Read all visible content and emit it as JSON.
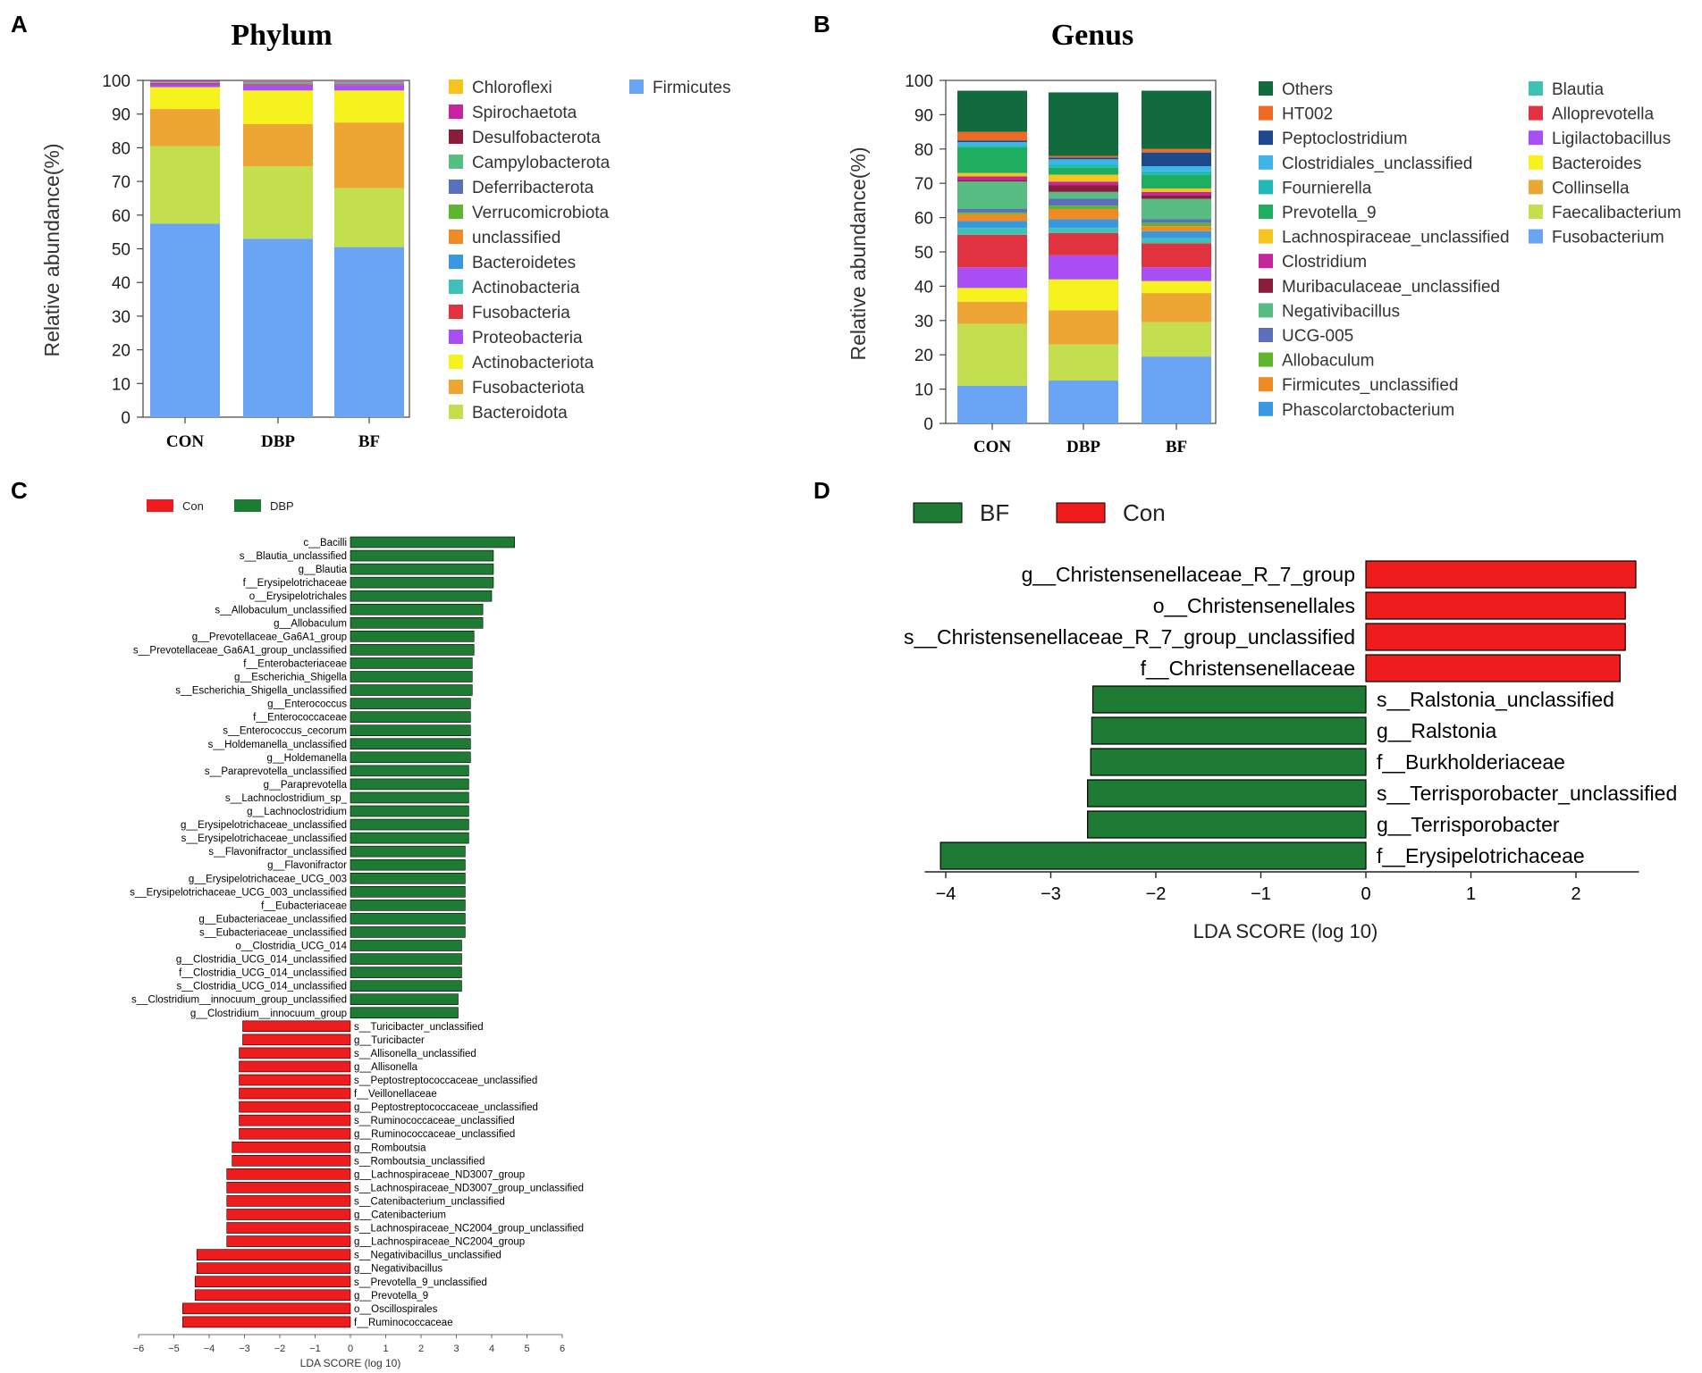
{
  "panels": [
    {
      "letter": "A",
      "title": "Phylum",
      "ylabel": "Relative abundance(%)",
      "categories": [
        "CON",
        "DBP",
        "BF"
      ],
      "yticks": [
        "0",
        "10",
        "20",
        "30",
        "40",
        "50",
        "60",
        "70",
        "80",
        "90",
        "100"
      ],
      "legend": [
        "Chloroflexi",
        "Spirochaetota",
        "Desulfobacterota",
        "Campylobacterota",
        "Deferribacterota",
        "Verrucomicrobiota",
        "unclassified",
        "Bacteroidetes",
        "Actinobacteria",
        "Fusobacteria",
        "Proteobacteria",
        "Actinobacteriota",
        "Fusobacteriota",
        "Bacteroidota",
        "Firmicutes"
      ]
    },
    {
      "letter": "B",
      "title": "Genus",
      "ylabel": "Relative abundance(%)",
      "categories": [
        "CON",
        "DBP",
        "BF"
      ],
      "yticks": [
        "0",
        "10",
        "20",
        "30",
        "40",
        "50",
        "60",
        "70",
        "80",
        "90",
        "100"
      ],
      "legend": [
        "Others",
        "HT002",
        "Peptoclostridium",
        "Clostridiales_unclassified",
        "Fournierella",
        "Prevotella_9",
        "Lachnospiraceae_unclassified",
        "Clostridium",
        "Muribaculaceae_unclassified",
        "Negativibacillus",
        "UCG-005",
        "Allobaculum",
        "Firmicutes_unclassified",
        "Phascolarctobacterium",
        "Blautia",
        "Alloprevotella",
        "Ligilactobacillus",
        "Bacteroides",
        "Collinsella",
        "Faecalibacterium",
        "Fusobacterium"
      ]
    },
    {
      "letter": "C",
      "legend": [
        "Con",
        "DBP"
      ],
      "xlabel": "LDA SCORE (log 10)",
      "xticks": [
        "−6",
        "−5",
        "−4",
        "−3",
        "−2",
        "−1",
        "0",
        "1",
        "2",
        "3",
        "4",
        "5",
        "6"
      ]
    },
    {
      "letter": "D",
      "legend": [
        "BF",
        "Con"
      ],
      "xlabel": "LDA SCORE (log 10)",
      "xticks": [
        "−4",
        "−3",
        "−2",
        "−1",
        "0",
        "1",
        "2"
      ]
    }
  ],
  "chart_data": [
    {
      "type": "bar",
      "stacked": true,
      "title": "Phylum",
      "ylabel": "Relative abundance(%)",
      "ylim": [
        0,
        100
      ],
      "categories": [
        "CON",
        "DBP",
        "BF"
      ],
      "colors": {
        "Firmicutes": "#6aa5f5",
        "Bacteroidota": "#c4df4e",
        "Fusobacteriota": "#eda633",
        "Actinobacteriota": "#f6f21e",
        "Proteobacteria": "#a94df5",
        "Fusobacteria": "#e0323f",
        "Actinobacteria": "#3fc2b5",
        "Bacteroidetes": "#3a98e0",
        "unclassified": "#f08a24",
        "Verrucomicrobiota": "#5fb62e",
        "Deferribacterota": "#5b6fbd",
        "Campylobacterota": "#58bd82",
        "Desulfobacterota": "#8a1c3c",
        "Spirochaetota": "#c6259b",
        "Chloroflexi": "#f5c41d"
      },
      "series": [
        {
          "name": "Firmicutes",
          "values": [
            57.5,
            53,
            50.5
          ]
        },
        {
          "name": "Bacteroidota",
          "values": [
            23,
            21.5,
            17.5
          ]
        },
        {
          "name": "Fusobacteriota",
          "values": [
            11,
            12.5,
            19.5
          ]
        },
        {
          "name": "Actinobacteriota",
          "values": [
            6.5,
            10,
            9.5
          ]
        },
        {
          "name": "Proteobacteria",
          "values": [
            0.8,
            1.5,
            1.6
          ]
        },
        {
          "name": "Fusobacteria",
          "values": [
            0.4,
            0.3,
            0.2
          ]
        },
        {
          "name": "Actinobacteria",
          "values": [
            0.2,
            0.2,
            0.2
          ]
        },
        {
          "name": "Bacteroidetes",
          "values": [
            0.2,
            0.3,
            0.3
          ]
        },
        {
          "name": "unclassified",
          "values": [
            0.1,
            0.2,
            0.2
          ]
        },
        {
          "name": "Spirochaetota",
          "values": [
            0.3,
            0.2,
            0.2
          ]
        }
      ]
    },
    {
      "type": "bar",
      "stacked": true,
      "title": "Genus",
      "ylabel": "Relative abundance(%)",
      "ylim": [
        0,
        100
      ],
      "categories": [
        "CON",
        "DBP",
        "BF"
      ],
      "colors": {
        "Fusobacterium": "#6aa5f5",
        "Faecalibacterium": "#c4df4e",
        "Collinsella": "#eda633",
        "Bacteroides": "#f6f21e",
        "Ligilactobacillus": "#a94df5",
        "Alloprevotella": "#e0323f",
        "Blautia": "#3fc2b5",
        "Phascolarctobacterium": "#3a98e0",
        "Firmicutes_unclassified": "#f08a24",
        "Allobaculum": "#5fb62e",
        "UCG-005": "#5b6fbd",
        "Negativibacillus": "#58bd82",
        "Muribaculaceae_unclassified": "#8a1c3c",
        "Clostridium": "#c6259b",
        "Lachnospiraceae_unclassified": "#f5c41d",
        "Prevotella_9": "#1fae5f",
        "Fournierella": "#1fbab8",
        "Clostridiales_unclassified": "#3fb4e8",
        "Peptoclostridium": "#1d4a8c",
        "HT002": "#ee6a25",
        "Others": "#116b3e"
      },
      "series": [
        {
          "name": "Fusobacterium",
          "values": [
            11,
            12.5,
            19.5
          ]
        },
        {
          "name": "Faecalibacterium",
          "values": [
            18,
            10.5,
            10
          ]
        },
        {
          "name": "Collinsella",
          "values": [
            6.5,
            10,
            8.5
          ]
        },
        {
          "name": "Bacteroides",
          "values": [
            4,
            9,
            3.5
          ]
        },
        {
          "name": "Ligilactobacillus",
          "values": [
            6,
            7,
            4
          ]
        },
        {
          "name": "Alloprevotella",
          "values": [
            9.5,
            6.5,
            7
          ]
        },
        {
          "name": "Blautia",
          "values": [
            2,
            1.5,
            1.5
          ]
        },
        {
          "name": "Phascolarctobacterium",
          "values": [
            2,
            2.5,
            2
          ]
        },
        {
          "name": "Firmicutes_unclassified",
          "values": [
            2,
            3,
            1.5
          ]
        },
        {
          "name": "Allobaculum",
          "values": [
            0.5,
            1,
            1
          ]
        },
        {
          "name": "UCG-005",
          "values": [
            1,
            2,
            1
          ]
        },
        {
          "name": "Negativibacillus",
          "values": [
            8,
            2,
            6
          ]
        },
        {
          "name": "Muribaculaceae_unclassified",
          "values": [
            0.5,
            2,
            1
          ]
        },
        {
          "name": "Clostridium",
          "values": [
            1,
            1,
            1
          ]
        },
        {
          "name": "Lachnospiraceae_unclassified",
          "values": [
            1,
            2,
            1
          ]
        },
        {
          "name": "Prevotella_9",
          "values": [
            7.5,
            2,
            4
          ]
        },
        {
          "name": "Fournierella",
          "values": [
            0.5,
            1,
            1
          ]
        },
        {
          "name": "Clostridiales_unclassified",
          "values": [
            1,
            1.5,
            1.5
          ]
        },
        {
          "name": "Peptoclostridium",
          "values": [
            0.5,
            0.5,
            4
          ]
        },
        {
          "name": "HT002",
          "values": [
            2.5,
            0.5,
            1
          ]
        },
        {
          "name": "Others",
          "values": [
            12,
            18.5,
            17
          ]
        }
      ]
    },
    {
      "type": "bar",
      "orientation": "horizontal",
      "xlabel": "LDA SCORE (log 10)",
      "xlim": [
        -6,
        6
      ],
      "legend": [
        "Con",
        "DBP"
      ],
      "colors": {
        "Con": "#ee1c1c",
        "DBP": "#1e7b34"
      },
      "categories": [
        "c__Bacilli",
        "s__Blautia_unclassified",
        "g__Blautia",
        "f__Erysipelotrichaceae",
        "o__Erysipelotrichales",
        "s__Allobaculum_unclassified",
        "g__Allobaculum",
        "g__Prevotellaceae_Ga6A1_group",
        "s__Prevotellaceae_Ga6A1_group_unclassified",
        "f__Enterobacteriaceae",
        "g__Escherichia_Shigella",
        "s__Escherichia_Shigella_unclassified",
        "g__Enterococcus",
        "f__Enterococcaceae",
        "s__Enterococcus_cecorum",
        "s__Holdemanella_unclassified",
        "g__Holdemanella",
        "s__Paraprevotella_unclassified",
        "g__Paraprevotella",
        "s__Lachnoclostridium_sp_",
        "g__Lachnoclostridium",
        "g__Erysipelotrichaceae_unclassified",
        "s__Erysipelotrichaceae_unclassified",
        "s__Flavonifractor_unclassified",
        "g__Flavonifractor",
        "g__Erysipelotrichaceae_UCG_003",
        "s__Erysipelotrichaceae_UCG_003_unclassified",
        "f__Eubacteriaceae",
        "g__Eubacteriaceae_unclassified",
        "s__Eubacteriaceae_unclassified",
        "o__Clostridia_UCG_014",
        "g__Clostridia_UCG_014_unclassified",
        "f__Clostridia_UCG_014_unclassified",
        "s__Clostridia_UCG_014_unclassified",
        "s__Clostridium__innocuum_group_unclassified",
        "g__Clostridium__innocuum_group",
        "s__Turicibacter_unclassified",
        "g__Turicibacter",
        "s__Allisonella_unclassified",
        "g__Allisonella",
        "s__Peptostreptococcaceae_unclassified",
        "f__Veillonellaceae",
        "g__Peptostreptococcaceae_unclassified",
        "s__Ruminococcaceae_unclassified",
        "g__Ruminococcaceae_unclassified",
        "g__Romboutsia",
        "s__Romboutsia_unclassified",
        "g__Lachnospiraceae_ND3007_group",
        "s__Lachnospiraceae_ND3007_group_unclassified",
        "s__Catenibacterium_unclassified",
        "g__Catenibacterium",
        "s__Lachnospiraceae_NC2004_group_unclassified",
        "g__Lachnospiraceae_NC2004_group",
        "s__Negativibacillus_unclassified",
        "g__Negativibacillus",
        "s__Prevotella_9_unclassified",
        "g__Prevotella_9",
        "o__Oscillospirales",
        "f__Ruminococcaceae"
      ],
      "values": [
        4.65,
        4.05,
        4.05,
        4.05,
        4.0,
        3.75,
        3.75,
        3.5,
        3.5,
        3.45,
        3.45,
        3.45,
        3.4,
        3.4,
        3.4,
        3.4,
        3.4,
        3.35,
        3.35,
        3.35,
        3.35,
        3.35,
        3.35,
        3.25,
        3.25,
        3.25,
        3.25,
        3.25,
        3.25,
        3.25,
        3.15,
        3.15,
        3.15,
        3.15,
        3.05,
        3.05,
        -3.05,
        -3.05,
        -3.15,
        -3.15,
        -3.15,
        -3.15,
        -3.15,
        -3.15,
        -3.15,
        -3.35,
        -3.35,
        -3.5,
        -3.5,
        -3.5,
        -3.5,
        -3.5,
        -3.5,
        -4.35,
        -4.35,
        -4.4,
        -4.4,
        -4.75,
        -4.75
      ]
    },
    {
      "type": "bar",
      "orientation": "horizontal",
      "xlabel": "LDA SCORE (log 10)",
      "xlim": [
        -4.2,
        2.6
      ],
      "legend": [
        "BF",
        "Con"
      ],
      "colors": {
        "BF": "#1e7b34",
        "Con": "#ee1c1c"
      },
      "categories": [
        "g__Christensenellaceae_R_7_group",
        "o__Christensenellales",
        "s__Christensenellaceae_R_7_group_unclassified",
        "f__Christensenellaceae",
        "s__Ralstonia_unclassified",
        "g__Ralstonia",
        "f__Burkholderiaceae",
        "s__Terrisporobacter_unclassified",
        "g__Terrisporobacter",
        "f__Erysipelotrichaceae"
      ],
      "values": [
        2.57,
        2.47,
        2.47,
        2.42,
        -2.6,
        -2.61,
        -2.62,
        -2.65,
        -2.65,
        -4.05
      ]
    }
  ]
}
